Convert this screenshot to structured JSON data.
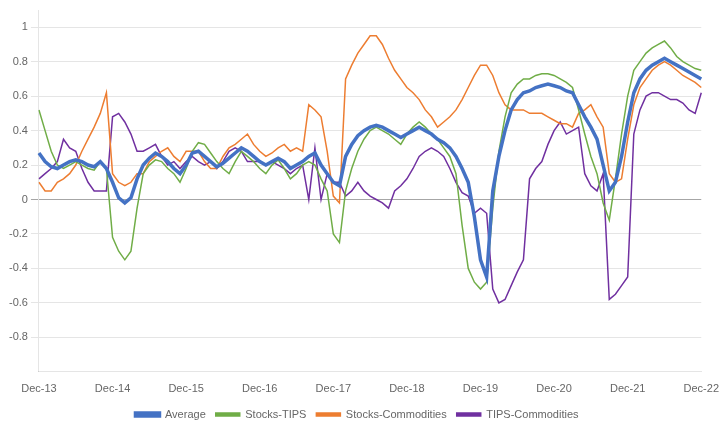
{
  "chart_data": {
    "type": "line",
    "categories": [
      "Dec-13",
      null,
      null,
      null,
      null,
      null,
      null,
      null,
      null,
      null,
      null,
      null,
      "Dec-14",
      null,
      null,
      null,
      null,
      null,
      null,
      null,
      null,
      null,
      null,
      null,
      "Dec-15",
      null,
      null,
      null,
      null,
      null,
      null,
      null,
      null,
      null,
      null,
      null,
      "Dec-16",
      null,
      null,
      null,
      null,
      null,
      null,
      null,
      null,
      null,
      null,
      null,
      "Dec-17",
      null,
      null,
      null,
      null,
      null,
      null,
      null,
      null,
      null,
      null,
      null,
      "Dec-18",
      null,
      null,
      null,
      null,
      null,
      null,
      null,
      null,
      null,
      null,
      null,
      "Dec-19",
      null,
      null,
      null,
      null,
      null,
      null,
      null,
      null,
      null,
      null,
      null,
      "Dec-20",
      null,
      null,
      null,
      null,
      null,
      null,
      null,
      null,
      null,
      null,
      null,
      "Dec-21",
      null,
      null,
      null,
      null,
      null,
      null,
      null,
      null,
      null,
      null,
      null,
      "Dec-22"
    ],
    "series": [
      {
        "name": "Average",
        "color": "#4472C4",
        "values": [
          0.27,
          0.22,
          0.19,
          0.18,
          0.2,
          0.22,
          0.23,
          0.22,
          0.2,
          0.19,
          0.22,
          0.18,
          0.1,
          0.01,
          -0.02,
          0.01,
          0.12,
          0.2,
          0.24,
          0.27,
          0.25,
          0.22,
          0.18,
          0.15,
          0.2,
          0.27,
          0.28,
          0.25,
          0.22,
          0.19,
          0.21,
          0.24,
          0.27,
          0.3,
          0.28,
          0.25,
          0.22,
          0.2,
          0.22,
          0.24,
          0.22,
          0.18,
          0.2,
          0.22,
          0.25,
          0.27,
          0.2,
          0.15,
          0.1,
          0.08,
          0.25,
          0.32,
          0.37,
          0.4,
          0.42,
          0.43,
          0.42,
          0.4,
          0.38,
          0.36,
          0.38,
          0.4,
          0.42,
          0.4,
          0.38,
          0.35,
          0.33,
          0.3,
          0.25,
          0.18,
          0.1,
          -0.1,
          -0.35,
          -0.45,
          0.05,
          0.25,
          0.4,
          0.52,
          0.58,
          0.62,
          0.63,
          0.65,
          0.66,
          0.67,
          0.66,
          0.65,
          0.63,
          0.62,
          0.55,
          0.48,
          0.42,
          0.35,
          0.2,
          0.05,
          0.1,
          0.25,
          0.45,
          0.62,
          0.7,
          0.75,
          0.78,
          0.8,
          0.82,
          0.8,
          0.78,
          0.76,
          0.74,
          0.72,
          0.7
        ]
      },
      {
        "name": "Stocks-TIPS",
        "color": "#70AD47",
        "values": [
          0.52,
          0.4,
          0.28,
          0.2,
          0.18,
          0.2,
          0.22,
          0.2,
          0.18,
          0.17,
          0.22,
          0.18,
          -0.22,
          -0.3,
          -0.35,
          -0.3,
          -0.05,
          0.15,
          0.2,
          0.23,
          0.22,
          0.18,
          0.15,
          0.1,
          0.18,
          0.28,
          0.33,
          0.32,
          0.27,
          0.22,
          0.18,
          0.15,
          0.22,
          0.28,
          0.25,
          0.22,
          0.18,
          0.15,
          0.2,
          0.23,
          0.18,
          0.12,
          0.15,
          0.2,
          0.22,
          0.2,
          0.12,
          0.05,
          -0.2,
          -0.25,
          0.05,
          0.18,
          0.28,
          0.35,
          0.4,
          0.42,
          0.4,
          0.38,
          0.35,
          0.32,
          0.38,
          0.42,
          0.45,
          0.42,
          0.38,
          0.35,
          0.3,
          0.25,
          0.15,
          -0.15,
          -0.4,
          -0.48,
          -0.52,
          -0.48,
          -0.05,
          0.28,
          0.48,
          0.62,
          0.67,
          0.7,
          0.7,
          0.72,
          0.73,
          0.73,
          0.72,
          0.7,
          0.68,
          0.65,
          0.52,
          0.38,
          0.25,
          0.15,
          -0.02,
          -0.12,
          0.12,
          0.38,
          0.6,
          0.75,
          0.8,
          0.85,
          0.88,
          0.9,
          0.92,
          0.88,
          0.83,
          0.8,
          0.78,
          0.76,
          0.75
        ]
      },
      {
        "name": "Stocks-Commodities",
        "color": "#ED7D31",
        "values": [
          0.1,
          0.05,
          0.05,
          0.1,
          0.12,
          0.15,
          0.2,
          0.28,
          0.35,
          0.42,
          0.5,
          0.62,
          0.15,
          0.1,
          0.08,
          0.1,
          0.15,
          0.15,
          0.22,
          0.25,
          0.28,
          0.3,
          0.25,
          0.22,
          0.28,
          0.28,
          0.28,
          0.22,
          0.18,
          0.18,
          0.25,
          0.3,
          0.32,
          0.35,
          0.38,
          0.32,
          0.28,
          0.25,
          0.27,
          0.3,
          0.32,
          0.28,
          0.3,
          0.28,
          0.55,
          0.52,
          0.48,
          0.28,
          0.02,
          -0.02,
          0.7,
          0.78,
          0.85,
          0.9,
          0.95,
          0.95,
          0.9,
          0.82,
          0.75,
          0.7,
          0.65,
          0.62,
          0.58,
          0.52,
          0.48,
          0.42,
          0.45,
          0.48,
          0.52,
          0.58,
          0.65,
          0.72,
          0.78,
          0.78,
          0.72,
          0.62,
          0.55,
          0.52,
          0.52,
          0.52,
          0.5,
          0.5,
          0.5,
          0.48,
          0.46,
          0.44,
          0.44,
          0.42,
          0.5,
          0.52,
          0.55,
          0.48,
          0.42,
          0.15,
          0.1,
          0.12,
          0.35,
          0.55,
          0.65,
          0.7,
          0.75,
          0.78,
          0.8,
          0.78,
          0.75,
          0.72,
          0.7,
          0.68,
          0.65
        ]
      },
      {
        "name": "TIPS-Commodities",
        "color": "#7030A0",
        "values": [
          0.12,
          0.15,
          0.18,
          0.22,
          0.35,
          0.3,
          0.28,
          0.18,
          0.1,
          0.05,
          0.05,
          0.05,
          0.48,
          0.5,
          0.45,
          0.38,
          0.28,
          0.28,
          0.3,
          0.32,
          0.25,
          0.2,
          0.22,
          0.18,
          0.22,
          0.25,
          0.22,
          0.2,
          0.22,
          0.18,
          0.22,
          0.28,
          0.3,
          0.28,
          0.22,
          0.22,
          0.22,
          0.2,
          0.22,
          0.2,
          0.18,
          0.15,
          0.18,
          0.2,
          0.0,
          0.3,
          0.0,
          0.15,
          0.1,
          0.1,
          0.02,
          0.05,
          0.1,
          0.05,
          0.02,
          0.0,
          -0.02,
          -0.05,
          0.05,
          0.08,
          0.12,
          0.18,
          0.25,
          0.28,
          0.3,
          0.28,
          0.25,
          0.18,
          0.1,
          0.04,
          0.02,
          -0.08,
          -0.05,
          -0.08,
          -0.52,
          -0.6,
          -0.58,
          -0.5,
          -0.42,
          -0.35,
          0.12,
          0.18,
          0.22,
          0.32,
          0.4,
          0.45,
          0.38,
          0.4,
          0.42,
          0.15,
          0.08,
          0.05,
          0.15,
          -0.58,
          -0.55,
          -0.5,
          -0.45,
          0.38,
          0.52,
          0.6,
          0.62,
          0.62,
          0.6,
          0.58,
          0.58,
          0.56,
          0.52,
          0.5,
          0.62
        ]
      }
    ],
    "ylim": [
      -1.0,
      1.1
    ],
    "yticks": [
      -0.8,
      -0.6,
      -0.4,
      -0.2,
      0,
      0.2,
      0.4,
      0.6,
      0.8,
      1
    ],
    "grid": true,
    "legend": "bottom"
  }
}
